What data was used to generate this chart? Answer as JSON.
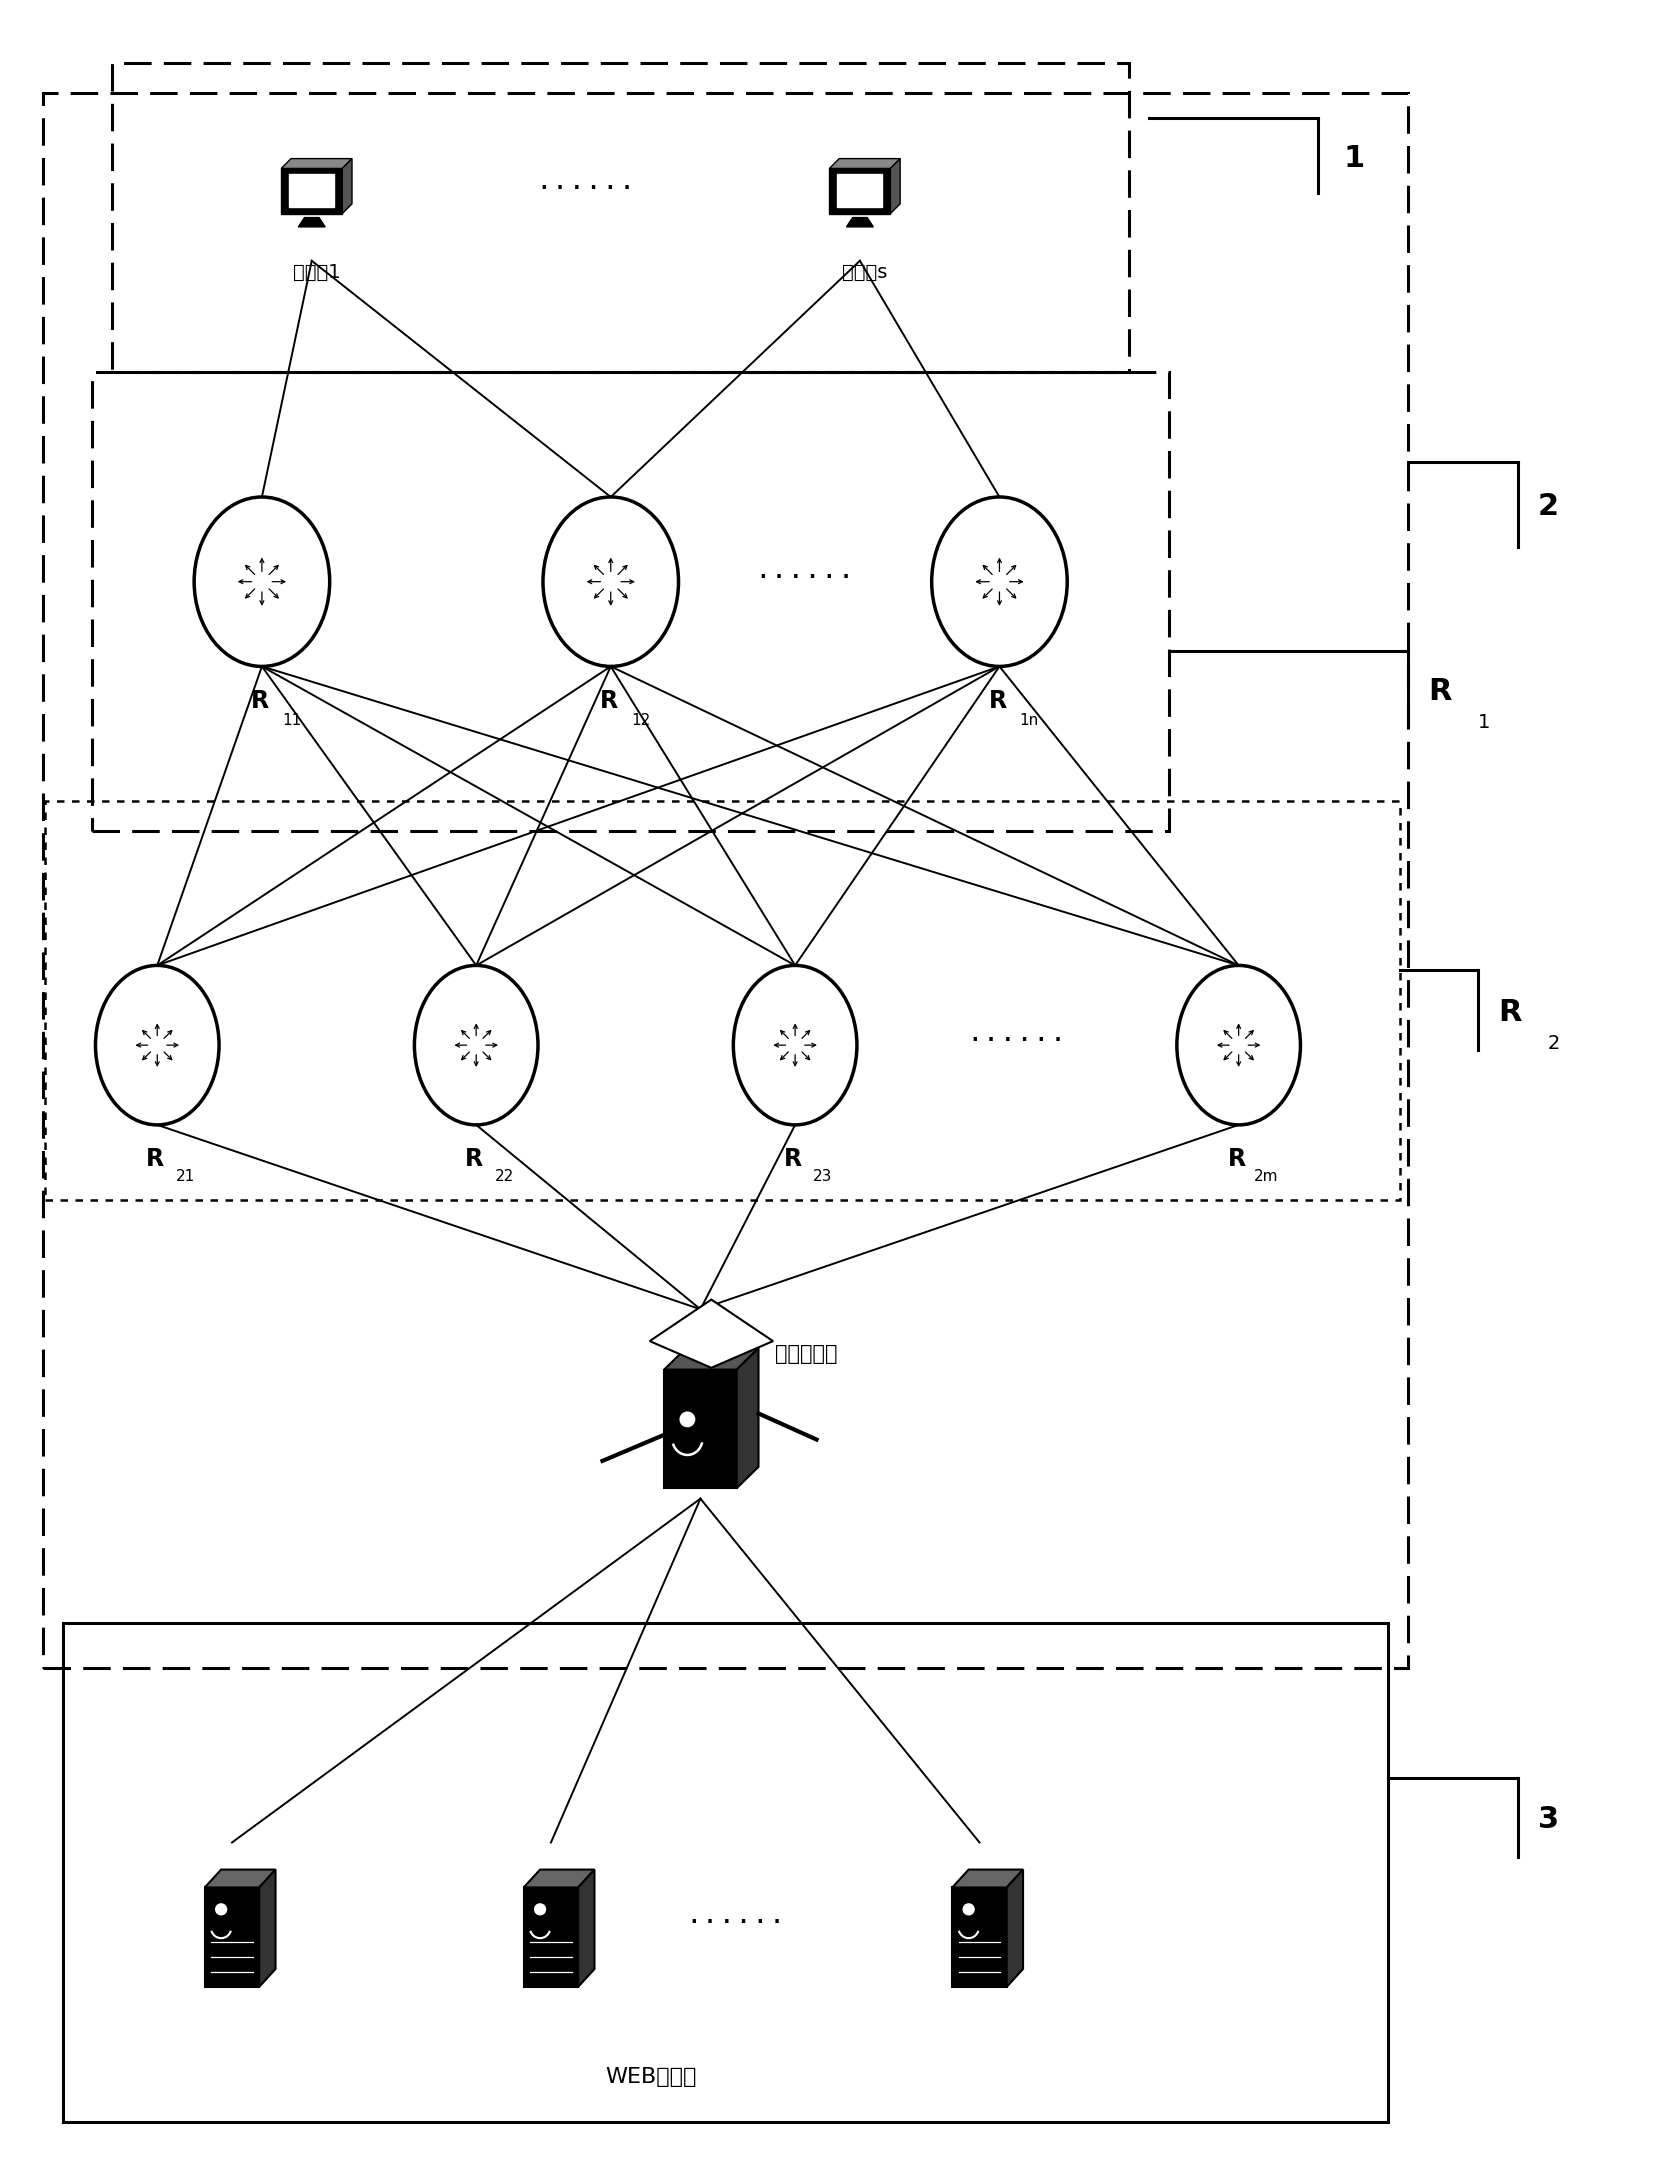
{
  "bg_color": "#ffffff",
  "label_client1": "客户端1",
  "label_clients": "客户端s",
  "label_proxy": "代理服务器",
  "label_web": "WEB服务器",
  "label_1": "1",
  "label_2": "2",
  "label_3": "3"
}
